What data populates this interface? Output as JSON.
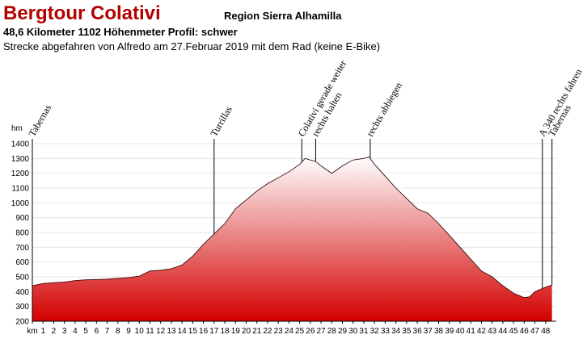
{
  "chart_data": {
    "type": "area",
    "title": "Bergtour Colativi",
    "subtitle": "Region Sierra Alhamilla",
    "info": "48,6 Kilometer  1102 Höhenmeter  Profil: schwer",
    "note": "Strecke abgefahren von Alfredo am 27.Februar 2019 mit dem Rad (keine E-Bike)",
    "ylabel": "hm",
    "color": "#d40000",
    "grid": true,
    "x": [
      0,
      1,
      2,
      3,
      4,
      5,
      6,
      7,
      8,
      9,
      10,
      11,
      12,
      13,
      14,
      15,
      16,
      17,
      18,
      19,
      20,
      21,
      22,
      23,
      24,
      25,
      25.5,
      26,
      26.5,
      27,
      28,
      29,
      30,
      31,
      31.5,
      32,
      33,
      34,
      35,
      36,
      37,
      38,
      39,
      40,
      41,
      42,
      43,
      44,
      45,
      46,
      46.5,
      47,
      48,
      48.6
    ],
    "values": [
      440,
      455,
      460,
      465,
      475,
      480,
      482,
      485,
      490,
      495,
      505,
      540,
      545,
      555,
      580,
      640,
      720,
      790,
      860,
      960,
      1020,
      1080,
      1130,
      1170,
      1210,
      1260,
      1300,
      1290,
      1280,
      1250,
      1200,
      1250,
      1290,
      1300,
      1310,
      1260,
      1180,
      1100,
      1030,
      960,
      930,
      860,
      780,
      700,
      620,
      540,
      500,
      440,
      390,
      360,
      365,
      400,
      430,
      445
    ],
    "xlim": [
      0,
      49
    ],
    "xticks": [
      {
        "value": 0,
        "label": "km"
      },
      1,
      2,
      3,
      4,
      5,
      6,
      7,
      8,
      9,
      10,
      11,
      12,
      13,
      14,
      15,
      16,
      17,
      18,
      19,
      20,
      21,
      22,
      23,
      24,
      25,
      26,
      27,
      28,
      29,
      30,
      31,
      32,
      33,
      34,
      35,
      36,
      37,
      38,
      39,
      40,
      41,
      42,
      43,
      44,
      45,
      46,
      47,
      48
    ],
    "ylim": [
      200,
      1400
    ],
    "yticks": [
      200,
      300,
      400,
      500,
      600,
      700,
      800,
      900,
      1000,
      1100,
      1200,
      1300,
      1400
    ],
    "annotations": [
      {
        "x": 0,
        "text": "Tabernas"
      },
      {
        "x": 17,
        "text": "Turrillas"
      },
      {
        "x": 25.2,
        "text": "Colativi gerade weiter"
      },
      {
        "x": 26.5,
        "text": "rechts halten"
      },
      {
        "x": 31.6,
        "text": "rechts abbiegen"
      },
      {
        "x": 47.7,
        "text": "A 340 rechts fahren"
      },
      {
        "x": 48.6,
        "text": "Tabernas"
      }
    ]
  }
}
